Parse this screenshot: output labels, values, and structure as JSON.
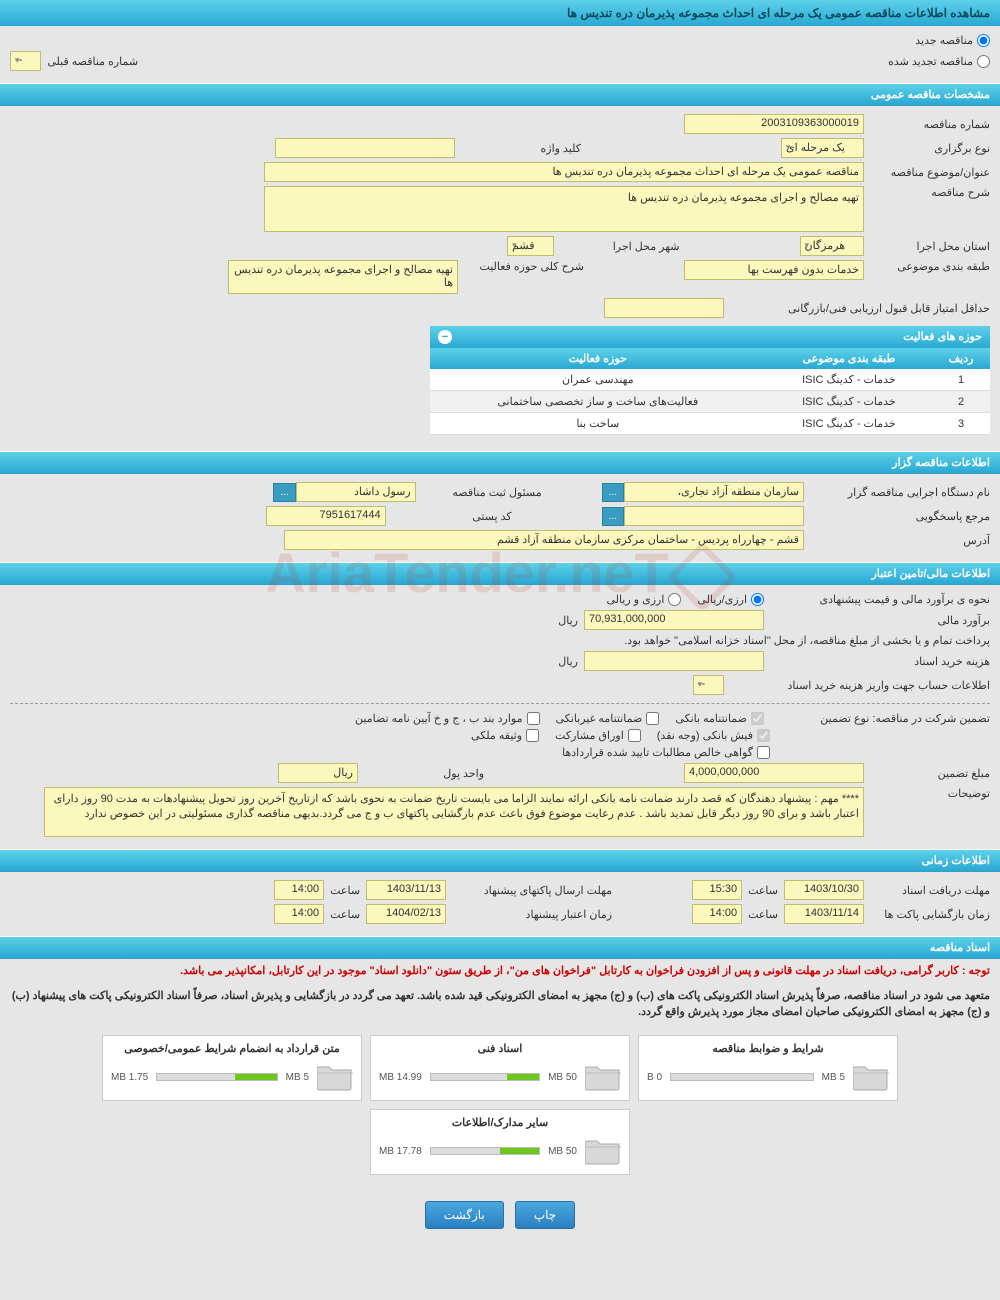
{
  "title": "مشاهده اطلاعات مناقصه عمومی یک مرحله ای احداث مجموعه پذیرمان دره تندیس ها",
  "top_radio": {
    "new": "مناقصه جدید",
    "renewed": "مناقصه تجدید شده"
  },
  "prev_tender": {
    "label": "شماره مناقصه قبلی",
    "value": "--"
  },
  "section_general": "مشخصات مناقصه عمومی",
  "general": {
    "tender_no_label": "شماره مناقصه",
    "tender_no": "2003109363000019",
    "type_label": "نوع برگزاری",
    "type_value": "یک مرحله ای",
    "keyword_label": "کلید واژه",
    "keyword_value": "",
    "subject_label": "عنوان/موضوع مناقصه",
    "subject_value": "مناقصه عمومی یک مرحله ای احداث مجموعه پذیرمان دره تندیس ها",
    "desc_label": "شرح مناقصه",
    "desc_value": "تهیه مصالح و اجرای مجموعه پذیرمان دره تندیس ها",
    "province_label": "استان محل اجرا",
    "province_value": "هرمزگان",
    "city_label": "شهر محل اجرا",
    "city_value": "قشم",
    "class_label": "طبقه بندی موضوعی",
    "class_value": "خدمات بدون فهرست بها",
    "scope_label": "شرح کلی حوزه فعالیت",
    "scope_value": "تهیه مصالح و اجرای مجموعه پذیرمان دره تندیس ها",
    "min_score_label": "حداقل امتیاز قابل قبول ارزیابی فنی/بازرگانی",
    "min_score_value": ""
  },
  "activity_title": "حوزه های فعالیت",
  "activity_cols": [
    "ردیف",
    "طبقه بندی موضوعی",
    "حوزه فعالیت"
  ],
  "activity_rows": [
    {
      "n": "1",
      "c": "خدمات - کدینگ ISIC",
      "a": "مهندسی عمران"
    },
    {
      "n": "2",
      "c": "خدمات - کدینگ ISIC",
      "a": "فعالیت‌های ساخت و ساز تخصصی ساختمانی"
    },
    {
      "n": "3",
      "c": "خدمات - کدینگ ISIC",
      "a": "ساخت بنا"
    }
  ],
  "section_organizer": "اطلاعات مناقصه گزار",
  "organizer": {
    "exec_label": "نام دستگاه اجرایی مناقصه گزار",
    "exec_value": "سازمان منطقه آزاد تجاری،",
    "registrant_label": "مسئول ثبت مناقصه",
    "registrant_value": "رسول داشاد",
    "response_label": "مرجع پاسخگویی",
    "response_value": "",
    "postal_label": "کد پستی",
    "postal_value": "7951617444",
    "address_label": "آدرس",
    "address_value": "قشم - چهارراه پردیس - ساختمان مرکزی سازمان منطقه آزاد قشم"
  },
  "section_finance": "اطلاعات مالی/تامین اعتبار",
  "finance": {
    "method_label": "نحوه ی برآورد مالی و قیمت پیشنهادی",
    "method_opt1": "ارزی/ریالی",
    "method_opt2": "ارزی و ریالی",
    "estimate_label": "برآورد مالی",
    "estimate_value": "70,931,000,000",
    "currency_label": "ریال",
    "payment_note": "پرداخت تمام و یا بخشی از مبلغ مناقصه، از محل \"اسناد خزانه اسلامی\" خواهد بود.",
    "doccost_label": "هزینه خرید اسناد",
    "doccost_value": "",
    "doccost_currency": "ریال",
    "account_label": "اطلاعات حساب جهت واریز هزینه خرید اسناد",
    "account_value": "--"
  },
  "guarantee": {
    "main_label": "تضمین شرکت در مناقصه:   نوع تضمین",
    "opt_bank": "ضمانتنامه بانکی",
    "opt_nonbank": "ضمانتنامه غیربانکی",
    "opt_clauses": "موارد بند ب ، ج و خ آیین نامه تضامین",
    "opt_cash": "فیش بانکی (وجه نقد)",
    "opt_bonds": "اوراق مشارکت",
    "opt_property": "وثیقه ملکی",
    "opt_cert": "گواهی خالص مطالبات تایید شده قراردادها",
    "amount_label": "مبلغ تضمین",
    "amount_value": "4,000,000,000",
    "unit_label": "واحد پول",
    "unit_value": "ریال",
    "notes_label": "توضیحات",
    "notes_value": "**** مهم : پیشنهاد دهندگان که قصد دارند ضمانت نامه بانکی ارائه نمایند الزاما می بایست تاریخ ضمانت به نحوی باشد که ازتاریخ آخرین روز تحویل پیشنهادهات به مدت 90 روز دارای اعتبار  باشد و برای 90 روز دیگر قابل تمدید باشد . عدم رعایت موضوع فوق باعث عدم بازگشایی پاکتهای ب و ج می گردد.بدیهی مناقصه گذاری مسئولیتی در این خصوص ندارد"
  },
  "section_time": "اطلاعات زمانی",
  "time": {
    "receive_label": "مهلت دریافت اسناد",
    "receive_date": "1403/10/30",
    "receive_time": "15:30",
    "submit_label": "مهلت ارسال پاکتهای پیشنهاد",
    "submit_date": "1403/11/13",
    "submit_time": "14:00",
    "open_label": "زمان بازگشایی پاکت ها",
    "open_date": "1403/11/14",
    "open_time": "14:00",
    "validity_label": "زمان اعتبار پیشنهاد",
    "validity_date": "1404/02/13",
    "validity_time": "14:00",
    "hour_label": "ساعت"
  },
  "section_docs": "اسناد مناقصه",
  "docs_notice1": "توجه : کاربر گرامی، دریافت اسناد در مهلت قانونی و پس از افزودن فراخوان به کارتابل \"فراخوان های من\"، از طریق ستون \"دانلود اسناد\" موجود در این کارتابل، امکانپذیر می باشد.",
  "docs_notice2": "متعهد می شود در اسناد مناقصه، صرفاً پذیرش اسناد الکترونیکی پاکت های (ب) و (ج) مجهز به امضای الکترونیکی قید شده باشد. تعهد می گردد در بازگشایی و پذیرش اسناد، صرفاً اسناد الکترونیکی پاکت های پیشنهاد (ب) و (ج) مجهز به امضای الکترونیکی صاحبان امضای مجاز مورد پذیرش واقع گردد.",
  "doc_cards": [
    {
      "title": "شرایط و ضوابط مناقصه",
      "used": "0 B",
      "cap": "5 MB",
      "pct": 0
    },
    {
      "title": "اسناد فنی",
      "used": "14.99 MB",
      "cap": "50 MB",
      "pct": 30
    },
    {
      "title": "متن قرارداد به انضمام شرایط عمومی/خصوصی",
      "used": "1.75 MB",
      "cap": "5 MB",
      "pct": 35
    },
    {
      "title": "سایر مدارک/اطلاعات",
      "used": "17.78 MB",
      "cap": "50 MB",
      "pct": 36
    }
  ],
  "buttons": {
    "print": "چاپ",
    "back": "بازگشت"
  },
  "dots": "...",
  "colors": {
    "header_gradient_top": "#5dd1e8",
    "header_gradient_bottom": "#2aa8d4",
    "input_bg": "#faf8bc",
    "input_border": "#c0be6c",
    "body_bg": "#e6e6e6",
    "progress": "#6ec71e",
    "red": "#c00",
    "btn_top": "#4aa8e0",
    "btn_bottom": "#2a80c0"
  }
}
